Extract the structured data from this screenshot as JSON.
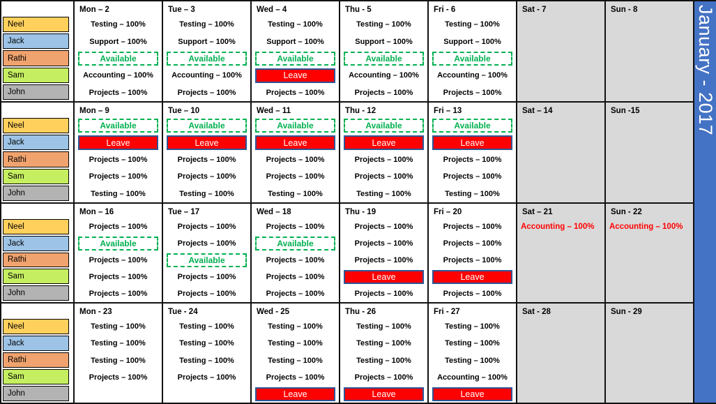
{
  "title": "January - 2017",
  "colors": {
    "title_bar": "#4472C4",
    "weekend_bg": "#D9D9D9",
    "available_green": "#00B050",
    "leave_red": "#FF0000",
    "leave_border": "#2E5596",
    "border_black": "#111111"
  },
  "people": [
    {
      "name": "Neel",
      "color": "#FFD05C"
    },
    {
      "name": "Jack",
      "color": "#9DC3E6"
    },
    {
      "name": "Rathi",
      "color": "#F0A36E"
    },
    {
      "name": "Sam",
      "color": "#C5EE61"
    },
    {
      "name": "John",
      "color": "#B3B3B3"
    }
  ],
  "weeks": [
    {
      "days": [
        {
          "label": "Mon – 2",
          "weekend": false,
          "cells": [
            {
              "type": "task",
              "text": "Testing – 100%"
            },
            {
              "type": "task",
              "text": "Support – 100%"
            },
            {
              "type": "available",
              "text": "Available"
            },
            {
              "type": "task",
              "text": "Accounting – 100%"
            },
            {
              "type": "task",
              "text": "Projects – 100%"
            }
          ]
        },
        {
          "label": "Tue – 3",
          "weekend": false,
          "cells": [
            {
              "type": "task",
              "text": "Testing – 100%"
            },
            {
              "type": "task",
              "text": "Support – 100%"
            },
            {
              "type": "available",
              "text": "Available"
            },
            {
              "type": "task",
              "text": "Accounting – 100%"
            },
            {
              "type": "task",
              "text": "Projects – 100%"
            }
          ]
        },
        {
          "label": "Wed – 4",
          "weekend": false,
          "cells": [
            {
              "type": "task",
              "text": "Testing – 100%"
            },
            {
              "type": "task",
              "text": "Support – 100%"
            },
            {
              "type": "available",
              "text": "Available"
            },
            {
              "type": "leave",
              "text": "Leave"
            },
            {
              "type": "task",
              "text": "Projects – 100%"
            }
          ]
        },
        {
          "label": "Thu - 5",
          "weekend": false,
          "cells": [
            {
              "type": "task",
              "text": "Testing – 100%"
            },
            {
              "type": "task",
              "text": "Support – 100%"
            },
            {
              "type": "available",
              "text": "Available"
            },
            {
              "type": "task",
              "text": "Accounting – 100%"
            },
            {
              "type": "task",
              "text": "Projects – 100%"
            }
          ]
        },
        {
          "label": "Fri - 6",
          "weekend": false,
          "cells": [
            {
              "type": "task",
              "text": "Testing – 100%"
            },
            {
              "type": "task",
              "text": "Support – 100%"
            },
            {
              "type": "available",
              "text": "Available"
            },
            {
              "type": "task",
              "text": "Accounting – 100%"
            },
            {
              "type": "task",
              "text": "Projects – 100%"
            }
          ]
        },
        {
          "label": "Sat - 7",
          "weekend": true,
          "cells": [
            {
              "type": "empty",
              "text": ""
            },
            {
              "type": "empty",
              "text": ""
            },
            {
              "type": "empty",
              "text": ""
            },
            {
              "type": "empty",
              "text": ""
            },
            {
              "type": "empty",
              "text": ""
            }
          ]
        },
        {
          "label": "Sun - 8",
          "weekend": true,
          "cells": [
            {
              "type": "empty",
              "text": ""
            },
            {
              "type": "empty",
              "text": ""
            },
            {
              "type": "empty",
              "text": ""
            },
            {
              "type": "empty",
              "text": ""
            },
            {
              "type": "empty",
              "text": ""
            }
          ]
        }
      ]
    },
    {
      "days": [
        {
          "label": "Mon – 9",
          "weekend": false,
          "cells": [
            {
              "type": "available",
              "text": "Available"
            },
            {
              "type": "leave",
              "text": "Leave"
            },
            {
              "type": "task",
              "text": "Projects – 100%"
            },
            {
              "type": "task",
              "text": "Projects – 100%"
            },
            {
              "type": "task",
              "text": "Testing – 100%"
            }
          ]
        },
        {
          "label": "Tue – 10",
          "weekend": false,
          "cells": [
            {
              "type": "available",
              "text": "Available"
            },
            {
              "type": "leave",
              "text": "Leave"
            },
            {
              "type": "task",
              "text": "Projects – 100%"
            },
            {
              "type": "task",
              "text": "Projects – 100%"
            },
            {
              "type": "task",
              "text": "Testing – 100%"
            }
          ]
        },
        {
          "label": "Wed – 11",
          "weekend": false,
          "cells": [
            {
              "type": "available",
              "text": "Available"
            },
            {
              "type": "leave",
              "text": "Leave"
            },
            {
              "type": "task",
              "text": "Projects – 100%"
            },
            {
              "type": "task",
              "text": "Projects – 100%"
            },
            {
              "type": "task",
              "text": "Testing – 100%"
            }
          ]
        },
        {
          "label": "Thu - 12",
          "weekend": false,
          "cells": [
            {
              "type": "available",
              "text": "Available"
            },
            {
              "type": "leave",
              "text": "Leave"
            },
            {
              "type": "task",
              "text": "Projects – 100%"
            },
            {
              "type": "task",
              "text": "Projects – 100%"
            },
            {
              "type": "task",
              "text": "Testing – 100%"
            }
          ]
        },
        {
          "label": "Fri – 13",
          "weekend": false,
          "cells": [
            {
              "type": "available",
              "text": "Available"
            },
            {
              "type": "leave",
              "text": "Leave"
            },
            {
              "type": "task",
              "text": "Projects – 100%"
            },
            {
              "type": "task",
              "text": "Projects – 100%"
            },
            {
              "type": "task",
              "text": "Testing – 100%"
            }
          ]
        },
        {
          "label": "Sat – 14",
          "weekend": true,
          "cells": [
            {
              "type": "empty",
              "text": ""
            },
            {
              "type": "empty",
              "text": ""
            },
            {
              "type": "empty",
              "text": ""
            },
            {
              "type": "empty",
              "text": ""
            },
            {
              "type": "empty",
              "text": ""
            }
          ]
        },
        {
          "label": "Sun -15",
          "weekend": true,
          "cells": [
            {
              "type": "empty",
              "text": ""
            },
            {
              "type": "empty",
              "text": ""
            },
            {
              "type": "empty",
              "text": ""
            },
            {
              "type": "empty",
              "text": ""
            },
            {
              "type": "empty",
              "text": ""
            }
          ]
        }
      ]
    },
    {
      "days": [
        {
          "label": "Mon – 16",
          "weekend": false,
          "cells": [
            {
              "type": "task",
              "text": "Projects – 100%"
            },
            {
              "type": "available",
              "text": "Available"
            },
            {
              "type": "task",
              "text": "Projects – 100%"
            },
            {
              "type": "task",
              "text": "Projects – 100%"
            },
            {
              "type": "task",
              "text": "Projects – 100%"
            }
          ]
        },
        {
          "label": "Tue – 17",
          "weekend": false,
          "cells": [
            {
              "type": "task",
              "text": "Projects – 100%"
            },
            {
              "type": "task",
              "text": "Projects – 100%"
            },
            {
              "type": "available",
              "text": "Available"
            },
            {
              "type": "task",
              "text": "Projects – 100%"
            },
            {
              "type": "task",
              "text": "Projects – 100%"
            }
          ]
        },
        {
          "label": "Wed – 18",
          "weekend": false,
          "cells": [
            {
              "type": "task",
              "text": "Projects – 100%"
            },
            {
              "type": "available",
              "text": "Available"
            },
            {
              "type": "task",
              "text": "Projects – 100%"
            },
            {
              "type": "task",
              "text": "Projects – 100%"
            },
            {
              "type": "task",
              "text": "Projects – 100%"
            }
          ]
        },
        {
          "label": "Thu - 19",
          "weekend": false,
          "cells": [
            {
              "type": "task",
              "text": "Projects – 100%"
            },
            {
              "type": "task",
              "text": "Projects – 100%"
            },
            {
              "type": "task",
              "text": "Projects – 100%"
            },
            {
              "type": "leave",
              "text": "Leave"
            },
            {
              "type": "task",
              "text": "Projects – 100%"
            }
          ]
        },
        {
          "label": "Fri – 20",
          "weekend": false,
          "cells": [
            {
              "type": "task",
              "text": "Projects – 100%"
            },
            {
              "type": "task",
              "text": "Projects – 100%"
            },
            {
              "type": "task",
              "text": "Projects – 100%"
            },
            {
              "type": "leave",
              "text": "Leave"
            },
            {
              "type": "task",
              "text": "Projects – 100%"
            }
          ]
        },
        {
          "label": "Sat – 21",
          "weekend": true,
          "cells": [
            {
              "type": "weekend-task",
              "text": "Accounting – 100%"
            },
            {
              "type": "empty",
              "text": ""
            },
            {
              "type": "empty",
              "text": ""
            },
            {
              "type": "empty",
              "text": ""
            },
            {
              "type": "empty",
              "text": ""
            }
          ]
        },
        {
          "label": "Sun - 22",
          "weekend": true,
          "cells": [
            {
              "type": "weekend-task",
              "text": "Accounting – 100%"
            },
            {
              "type": "empty",
              "text": ""
            },
            {
              "type": "empty",
              "text": ""
            },
            {
              "type": "empty",
              "text": ""
            },
            {
              "type": "empty",
              "text": ""
            }
          ]
        }
      ]
    },
    {
      "days": [
        {
          "label": "Mon - 23",
          "weekend": false,
          "cells": [
            {
              "type": "task",
              "text": "Testing – 100%"
            },
            {
              "type": "task",
              "text": "Testing – 100%"
            },
            {
              "type": "task",
              "text": "Testing – 100%"
            },
            {
              "type": "task",
              "text": "Projects – 100%"
            },
            {
              "type": "empty",
              "text": ""
            }
          ]
        },
        {
          "label": "Tue - 24",
          "weekend": false,
          "cells": [
            {
              "type": "task",
              "text": "Testing – 100%"
            },
            {
              "type": "task",
              "text": "Testing – 100%"
            },
            {
              "type": "task",
              "text": "Testing – 100%"
            },
            {
              "type": "task",
              "text": "Projects – 100%"
            },
            {
              "type": "empty",
              "text": ""
            }
          ]
        },
        {
          "label": "Wed - 25",
          "weekend": false,
          "cells": [
            {
              "type": "task",
              "text": "Testing – 100%"
            },
            {
              "type": "task",
              "text": "Testing – 100%"
            },
            {
              "type": "task",
              "text": "Testing – 100%"
            },
            {
              "type": "task",
              "text": "Projects – 100%"
            },
            {
              "type": "leave",
              "text": "Leave"
            }
          ]
        },
        {
          "label": "Thu - 26",
          "weekend": false,
          "cells": [
            {
              "type": "task",
              "text": "Testing – 100%"
            },
            {
              "type": "task",
              "text": "Testing – 100%"
            },
            {
              "type": "task",
              "text": "Testing – 100%"
            },
            {
              "type": "task",
              "text": "Projects – 100%"
            },
            {
              "type": "leave",
              "text": "Leave"
            }
          ]
        },
        {
          "label": "Fri - 27",
          "weekend": false,
          "cells": [
            {
              "type": "task",
              "text": "Testing – 100%"
            },
            {
              "type": "task",
              "text": "Testing – 100%"
            },
            {
              "type": "task",
              "text": "Testing – 100%"
            },
            {
              "type": "task",
              "text": "Accounting – 100%"
            },
            {
              "type": "leave",
              "text": "Leave"
            }
          ]
        },
        {
          "label": "Sat - 28",
          "weekend": true,
          "cells": [
            {
              "type": "empty",
              "text": ""
            },
            {
              "type": "empty",
              "text": ""
            },
            {
              "type": "empty",
              "text": ""
            },
            {
              "type": "empty",
              "text": ""
            },
            {
              "type": "empty",
              "text": ""
            }
          ]
        },
        {
          "label": "Sun - 29",
          "weekend": true,
          "cells": [
            {
              "type": "empty",
              "text": ""
            },
            {
              "type": "empty",
              "text": ""
            },
            {
              "type": "empty",
              "text": ""
            },
            {
              "type": "empty",
              "text": ""
            },
            {
              "type": "empty",
              "text": ""
            }
          ]
        }
      ]
    }
  ]
}
